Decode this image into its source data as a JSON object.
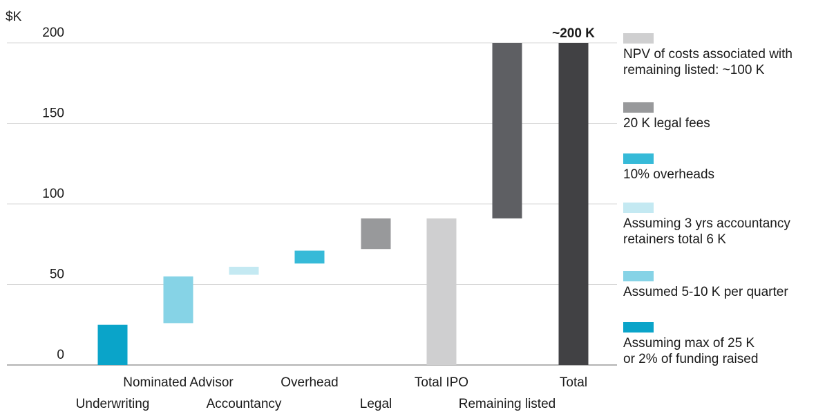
{
  "chart_data": {
    "type": "bar",
    "subtype": "waterfall",
    "unit_label": "$K",
    "ylim": [
      0,
      200
    ],
    "y_ticks": [
      0,
      50,
      100,
      150,
      200
    ],
    "grid": true,
    "legend_position": "right",
    "total_annotation": "~200 K",
    "categories": [
      "Underwriting",
      "Nominated Advisor",
      "Accountancy",
      "Overhead",
      "Legal",
      "Total IPO",
      "Remaining listed",
      "Total"
    ],
    "bars": [
      {
        "category": "Underwriting",
        "start": 0,
        "end": 25,
        "color": "#0aa4c9"
      },
      {
        "category": "Nominated Advisor",
        "start": 26,
        "end": 55,
        "color": "#86d3e6"
      },
      {
        "category": "Accountancy",
        "start": 56,
        "end": 61,
        "color": "#c4e9f2"
      },
      {
        "category": "Overhead",
        "start": 63,
        "end": 71,
        "color": "#36bad8"
      },
      {
        "category": "Legal",
        "start": 72,
        "end": 91,
        "color": "#98999b"
      },
      {
        "category": "Total IPO",
        "start": 0,
        "end": 91,
        "color": "#cfcfd0"
      },
      {
        "category": "Remaining listed",
        "start": 91,
        "end": 200,
        "color": "#5e5f63"
      },
      {
        "category": "Total",
        "start": 0,
        "end": 200,
        "color": "#414144"
      }
    ],
    "legend": [
      {
        "color": "#cfcfd0",
        "lines": [
          "NPV of costs associated with",
          "remaining listed: ~100 K"
        ]
      },
      {
        "color": "#98999b",
        "lines": [
          "20 K legal fees"
        ]
      },
      {
        "color": "#36bad8",
        "lines": [
          "10% overheads"
        ]
      },
      {
        "color": "#c4e9f2",
        "lines": [
          "Assuming 3 yrs accountancy",
          "retainers total 6 K"
        ]
      },
      {
        "color": "#86d3e6",
        "lines": [
          "Assumed 5-10 K per quarter"
        ]
      },
      {
        "color": "#0aa4c9",
        "lines": [
          "Assuming max of 25 K",
          "or 2% of funding raised"
        ]
      }
    ]
  }
}
